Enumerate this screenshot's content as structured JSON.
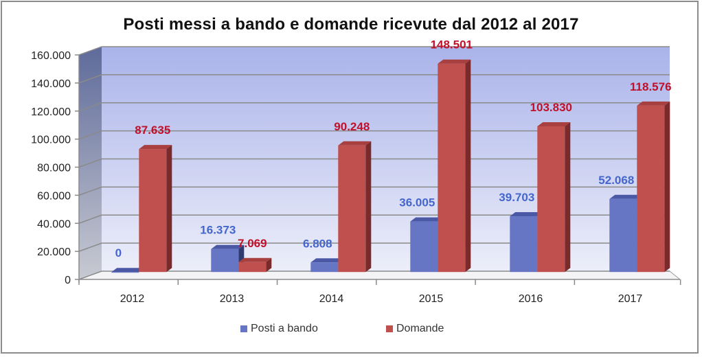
{
  "chart_data": {
    "type": "bar",
    "title": "Posti messi a bando e domande ricevute dal 2012 al 2017",
    "categories": [
      "2012",
      "2013",
      "2014",
      "2015",
      "2016",
      "2017"
    ],
    "series": [
      {
        "name": "Posti a bando",
        "color": "#6675c4",
        "label_color": "#4466cc",
        "values": [
          0,
          16373,
          6808,
          36005,
          39703,
          52068
        ],
        "labels": [
          "0",
          "16.373",
          "6.808",
          "36.005",
          "39.703",
          "52.068"
        ]
      },
      {
        "name": "Domande",
        "color": "#c0504d",
        "label_color": "#c0102a",
        "values": [
          87635,
          7069,
          90248,
          148501,
          103830,
          118576
        ],
        "labels": [
          "87.635",
          "7.069",
          "90.248",
          "148.501",
          "103.830",
          "118.576"
        ]
      }
    ],
    "yticks": [
      "0",
      "20.000",
      "40.000",
      "60.000",
      "80.000",
      "100.000",
      "120.000",
      "140.000",
      "160.000"
    ],
    "ylim": [
      0,
      160000
    ],
    "xlabel": "",
    "ylabel": "",
    "grid": true,
    "legend_position": "bottom",
    "style": "3d-clustered-column"
  },
  "title": "Posti messi a bando e domande ricevute dal 2012 al 2017",
  "legend": [
    {
      "label": "Posti a bando",
      "color": "#6675c4"
    },
    {
      "label": "Domande",
      "color": "#c0504d"
    }
  ]
}
